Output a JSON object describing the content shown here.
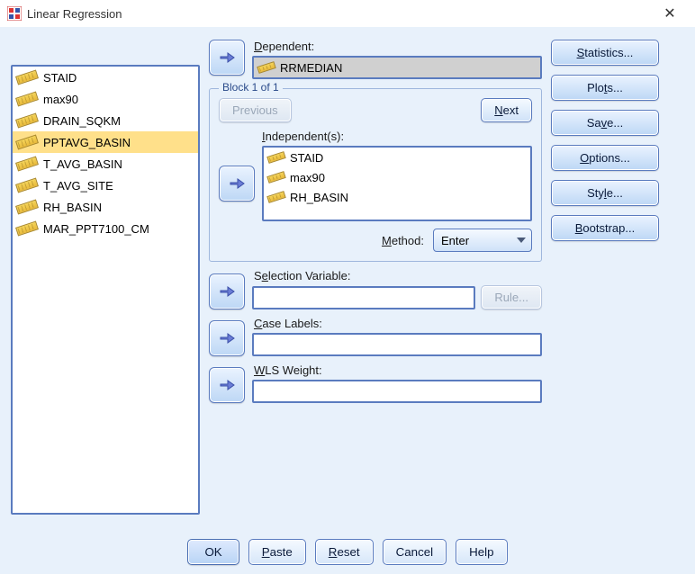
{
  "window": {
    "title": "Linear Regression"
  },
  "variables": {
    "items": [
      {
        "label": "STAID"
      },
      {
        "label": "max90"
      },
      {
        "label": "DRAIN_SQKM"
      },
      {
        "label": "PPTAVG_BASIN"
      },
      {
        "label": "T_AVG_BASIN"
      },
      {
        "label": "T_AVG_SITE"
      },
      {
        "label": "RH_BASIN"
      },
      {
        "label": "MAR_PPT7100_CM"
      }
    ],
    "selected_index": 3
  },
  "dependent": {
    "label_text": "Dependent:",
    "underline": "D",
    "value": "RRMEDIAN"
  },
  "block": {
    "legend": "Block 1 of 1",
    "previous": {
      "text": "Previous",
      "underline": "v",
      "enabled": false
    },
    "next": {
      "text": "Next",
      "underline": "N",
      "enabled": true
    },
    "independent_label": "Independent(s):",
    "independent_underline": "I",
    "independents": [
      {
        "label": "STAID"
      },
      {
        "label": "max90"
      },
      {
        "label": "RH_BASIN"
      }
    ],
    "method_label": "Method:",
    "method_underline": "M",
    "method_value": "Enter"
  },
  "selection_variable": {
    "label": "Selection Variable:",
    "underline": "e",
    "value": "",
    "rule_label": "Rule...",
    "rule_underline": "u",
    "rule_enabled": false
  },
  "case_labels": {
    "label": "Case Labels:",
    "underline": "C",
    "value": ""
  },
  "wls_weight": {
    "label": "WLS Weight:",
    "underline": "W",
    "value": ""
  },
  "side_buttons": {
    "statistics": {
      "text": "Statistics...",
      "underline": "S"
    },
    "plots": {
      "text": "Plots...",
      "underline": "t"
    },
    "save": {
      "text": "Save...",
      "underline": "v"
    },
    "options": {
      "text": "Options...",
      "underline": "O"
    },
    "style": {
      "text": "Style...",
      "underline": "l"
    },
    "bootstrap": {
      "text": "Bootstrap...",
      "underline": "B"
    }
  },
  "bottom": {
    "ok": "OK",
    "paste": {
      "text": "Paste",
      "underline": "P"
    },
    "reset": {
      "text": "Reset",
      "underline": "R"
    },
    "cancel": "Cancel",
    "help": "Help"
  },
  "colors": {
    "body_bg": "#e8f1fb",
    "border": "#5a7bbf",
    "selected_bg": "#ffe08a",
    "readonly_bg": "#d0d0d0",
    "arrow": "#6b7dd6"
  }
}
